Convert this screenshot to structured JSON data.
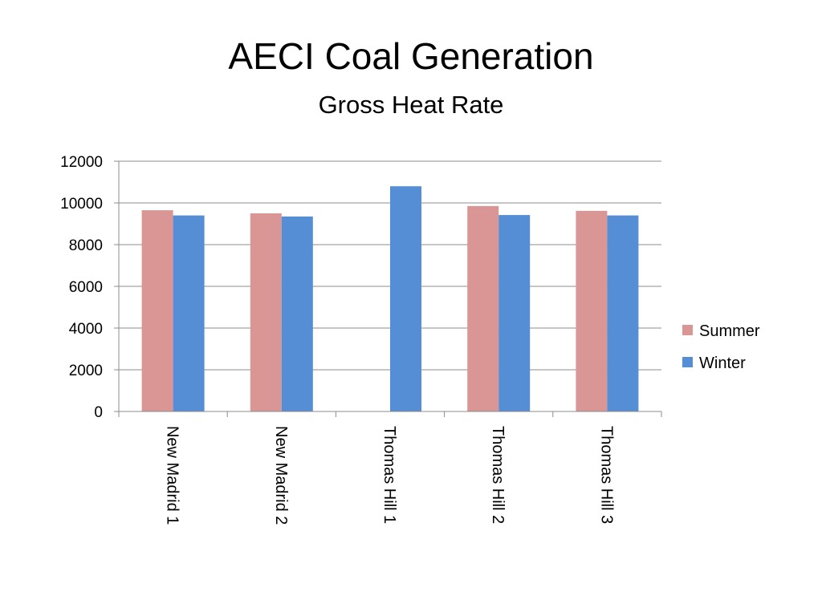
{
  "slide": {
    "title": "AECI Coal Generation",
    "subtitle": "Gross Heat Rate"
  },
  "chart_data": {
    "type": "bar",
    "title": "AECI Coal Generation",
    "subtitle": "Gross Heat Rate",
    "xlabel": "",
    "ylabel": "",
    "categories": [
      "New Madrid 1",
      "New Madrid 2",
      "Thomas Hill 1",
      "Thomas Hill 2",
      "Thomas Hill 3"
    ],
    "series": [
      {
        "name": "Summer",
        "color": "#d99694",
        "values": [
          9650,
          9500,
          null,
          9850,
          9620
        ]
      },
      {
        "name": "Winter",
        "color": "#558ed5",
        "values": [
          9400,
          9350,
          10800,
          9420,
          9400
        ]
      }
    ],
    "ylim": [
      0,
      12000
    ],
    "yticks": [
      0,
      2000,
      4000,
      6000,
      8000,
      10000,
      12000
    ],
    "grid": true,
    "legend_position": "right",
    "category_label_orientation": "rotated-90-clockwise"
  }
}
